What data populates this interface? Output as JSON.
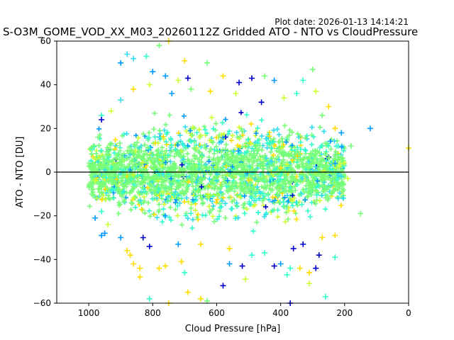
{
  "header": {
    "plot_date": "Plot date: 2026-01-13 14:14:21",
    "title": "S-O3M_GOME_VOD_XX_M03_20260112Z Gridded ATO - NTO vs CloudPressure"
  },
  "chart_data": {
    "type": "scatter",
    "xlabel": "Cloud Pressure [hPa]",
    "ylabel": "ATO - NTO [DU]",
    "xlim": [
      1100,
      0
    ],
    "ylim": [
      -60,
      60
    ],
    "x_ticks": [
      "1000",
      "800",
      "600",
      "400",
      "200",
      "0"
    ],
    "x_tick_values": [
      1000,
      800,
      600,
      400,
      200,
      0
    ],
    "y_ticks": [
      "60",
      "40",
      "20",
      "0",
      "−20",
      "−40",
      "−60"
    ],
    "y_tick_values": [
      60,
      40,
      20,
      0,
      -20,
      -40,
      -60
    ],
    "reference_line_y": 0,
    "marker": "+",
    "colors": [
      "#0000cc",
      "#0099ff",
      "#33ddee",
      "#33ffcc",
      "#77ff77",
      "#ccff33",
      "#ffdd00"
    ],
    "dense_core": {
      "x": [
        1000,
        200
      ],
      "y": [
        -20,
        20
      ],
      "color": "#77ff77"
    },
    "points": [
      {
        "x": 880,
        "y": 54,
        "c": 2
      },
      {
        "x": 900,
        "y": 50,
        "c": 1
      },
      {
        "x": 860,
        "y": 52,
        "c": 2
      },
      {
        "x": 820,
        "y": 53,
        "c": 3
      },
      {
        "x": 780,
        "y": 58,
        "c": 4
      },
      {
        "x": 750,
        "y": 60,
        "c": 6
      },
      {
        "x": 700,
        "y": 51,
        "c": 6
      },
      {
        "x": 630,
        "y": 50,
        "c": 4
      },
      {
        "x": 800,
        "y": 46,
        "c": 1
      },
      {
        "x": 760,
        "y": 44,
        "c": 1
      },
      {
        "x": 720,
        "y": 42,
        "c": 5
      },
      {
        "x": 690,
        "y": 43,
        "c": 0
      },
      {
        "x": 580,
        "y": 44,
        "c": 6
      },
      {
        "x": 530,
        "y": 41,
        "c": 0
      },
      {
        "x": 490,
        "y": 43,
        "c": 0
      },
      {
        "x": 450,
        "y": 44,
        "c": 4
      },
      {
        "x": 420,
        "y": 42,
        "c": 1
      },
      {
        "x": 330,
        "y": 42,
        "c": 3
      },
      {
        "x": 300,
        "y": 47,
        "c": 4
      },
      {
        "x": 290,
        "y": 37,
        "c": 5
      },
      {
        "x": 350,
        "y": 36,
        "c": 3
      },
      {
        "x": 960,
        "y": 26,
        "c": 3
      },
      {
        "x": 960,
        "y": 24,
        "c": 0
      },
      {
        "x": 180,
        "y": 12,
        "c": 4
      },
      {
        "x": 210,
        "y": 18,
        "c": 1
      },
      {
        "x": 120,
        "y": 20,
        "c": 1
      },
      {
        "x": 0,
        "y": 11,
        "c": 6
      },
      {
        "x": 190,
        "y": -3,
        "c": 5
      },
      {
        "x": 150,
        "y": -19,
        "c": 4
      },
      {
        "x": 980,
        "y": -21,
        "c": 1
      },
      {
        "x": 960,
        "y": -29,
        "c": 1
      },
      {
        "x": 880,
        "y": -36,
        "c": 6
      },
      {
        "x": 870,
        "y": -38,
        "c": 6
      },
      {
        "x": 860,
        "y": -42,
        "c": 6
      },
      {
        "x": 840,
        "y": -44,
        "c": 6
      },
      {
        "x": 840,
        "y": -48,
        "c": 6
      },
      {
        "x": 810,
        "y": -34,
        "c": 0
      },
      {
        "x": 780,
        "y": -44,
        "c": 6
      },
      {
        "x": 760,
        "y": -43,
        "c": 6
      },
      {
        "x": 810,
        "y": -58,
        "c": 3
      },
      {
        "x": 750,
        "y": -60,
        "c": 6
      },
      {
        "x": 710,
        "y": -41,
        "c": 6
      },
      {
        "x": 700,
        "y": -46,
        "c": 3
      },
      {
        "x": 690,
        "y": -55,
        "c": 6
      },
      {
        "x": 650,
        "y": -58,
        "c": 6
      },
      {
        "x": 630,
        "y": -59,
        "c": 4
      },
      {
        "x": 580,
        "y": -52,
        "c": 0
      },
      {
        "x": 560,
        "y": -42,
        "c": 1
      },
      {
        "x": 520,
        "y": -43,
        "c": 0
      },
      {
        "x": 510,
        "y": -49,
        "c": 5
      },
      {
        "x": 490,
        "y": -38,
        "c": 3
      },
      {
        "x": 450,
        "y": -37,
        "c": 3
      },
      {
        "x": 420,
        "y": -43,
        "c": 0
      },
      {
        "x": 400,
        "y": -42,
        "c": 1
      },
      {
        "x": 380,
        "y": -47,
        "c": 3
      },
      {
        "x": 370,
        "y": -44,
        "c": 3
      },
      {
        "x": 370,
        "y": -60,
        "c": 0
      },
      {
        "x": 340,
        "y": -44,
        "c": 6
      },
      {
        "x": 310,
        "y": -46,
        "c": 6
      },
      {
        "x": 310,
        "y": -51,
        "c": 5
      },
      {
        "x": 290,
        "y": -44,
        "c": 0
      },
      {
        "x": 280,
        "y": -38,
        "c": 0
      },
      {
        "x": 260,
        "y": -57,
        "c": 3
      },
      {
        "x": 230,
        "y": -39,
        "c": 3
      },
      {
        "x": 230,
        "y": -29,
        "c": 6
      },
      {
        "x": 270,
        "y": -30,
        "c": 6
      },
      {
        "x": 330,
        "y": -33,
        "c": 0
      },
      {
        "x": 360,
        "y": -35,
        "c": 0
      },
      {
        "x": 560,
        "y": -35,
        "c": 6
      },
      {
        "x": 650,
        "y": -33,
        "c": 6
      },
      {
        "x": 720,
        "y": -33,
        "c": 1
      },
      {
        "x": 950,
        "y": -28,
        "c": 1
      },
      {
        "x": 900,
        "y": -30,
        "c": 1
      },
      {
        "x": 830,
        "y": -30,
        "c": 0
      },
      {
        "x": 250,
        "y": 30,
        "c": 6
      },
      {
        "x": 270,
        "y": 26,
        "c": 4
      },
      {
        "x": 230,
        "y": 20,
        "c": 6
      },
      {
        "x": 220,
        "y": 12,
        "c": 3
      },
      {
        "x": 230,
        "y": 4,
        "c": 1
      },
      {
        "x": 210,
        "y": -2,
        "c": 2
      },
      {
        "x": 220,
        "y": -12,
        "c": 2
      },
      {
        "x": 390,
        "y": 34,
        "c": 5
      },
      {
        "x": 460,
        "y": 32,
        "c": 0
      },
      {
        "x": 540,
        "y": 36,
        "c": 5
      },
      {
        "x": 620,
        "y": 37,
        "c": 6
      },
      {
        "x": 680,
        "y": 38,
        "c": 4
      },
      {
        "x": 740,
        "y": 36,
        "c": 1
      },
      {
        "x": 810,
        "y": 40,
        "c": 5
      },
      {
        "x": 860,
        "y": 38,
        "c": 6
      },
      {
        "x": 900,
        "y": 33,
        "c": 2
      },
      {
        "x": 930,
        "y": 28,
        "c": 5
      },
      {
        "x": 970,
        "y": 16,
        "c": 4
      },
      {
        "x": 980,
        "y": 6,
        "c": 5
      },
      {
        "x": 980,
        "y": -4,
        "c": 5
      },
      {
        "x": 975,
        "y": -12,
        "c": 5
      },
      {
        "x": 960,
        "y": -18,
        "c": 3
      },
      {
        "x": 940,
        "y": -24,
        "c": 5
      }
    ]
  }
}
